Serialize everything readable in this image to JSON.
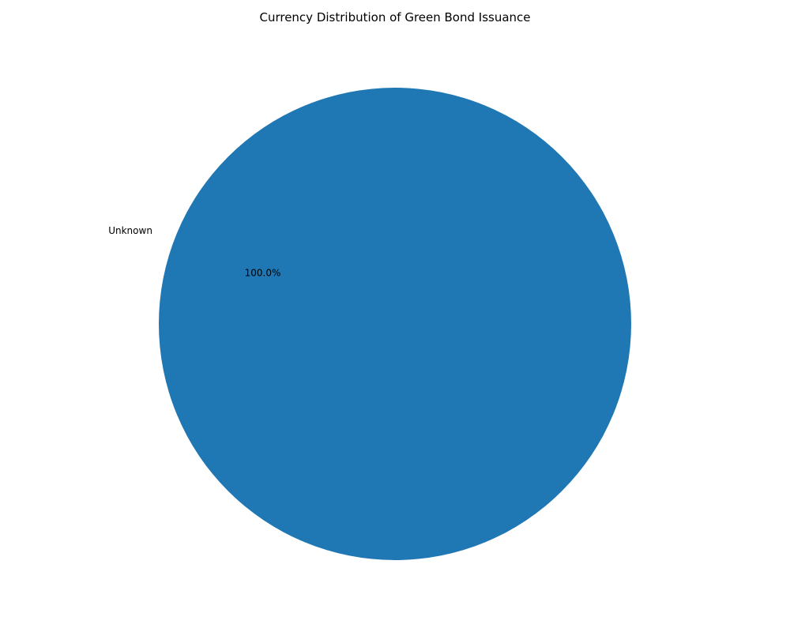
{
  "chart_data": {
    "type": "pie",
    "title": "Currency Distribution of Green Bond Issuance",
    "slices": [
      {
        "label": "Unknown",
        "value": 100.0,
        "percent_label": "100.0%",
        "color": "#1f77b4"
      }
    ],
    "legend": "none"
  }
}
